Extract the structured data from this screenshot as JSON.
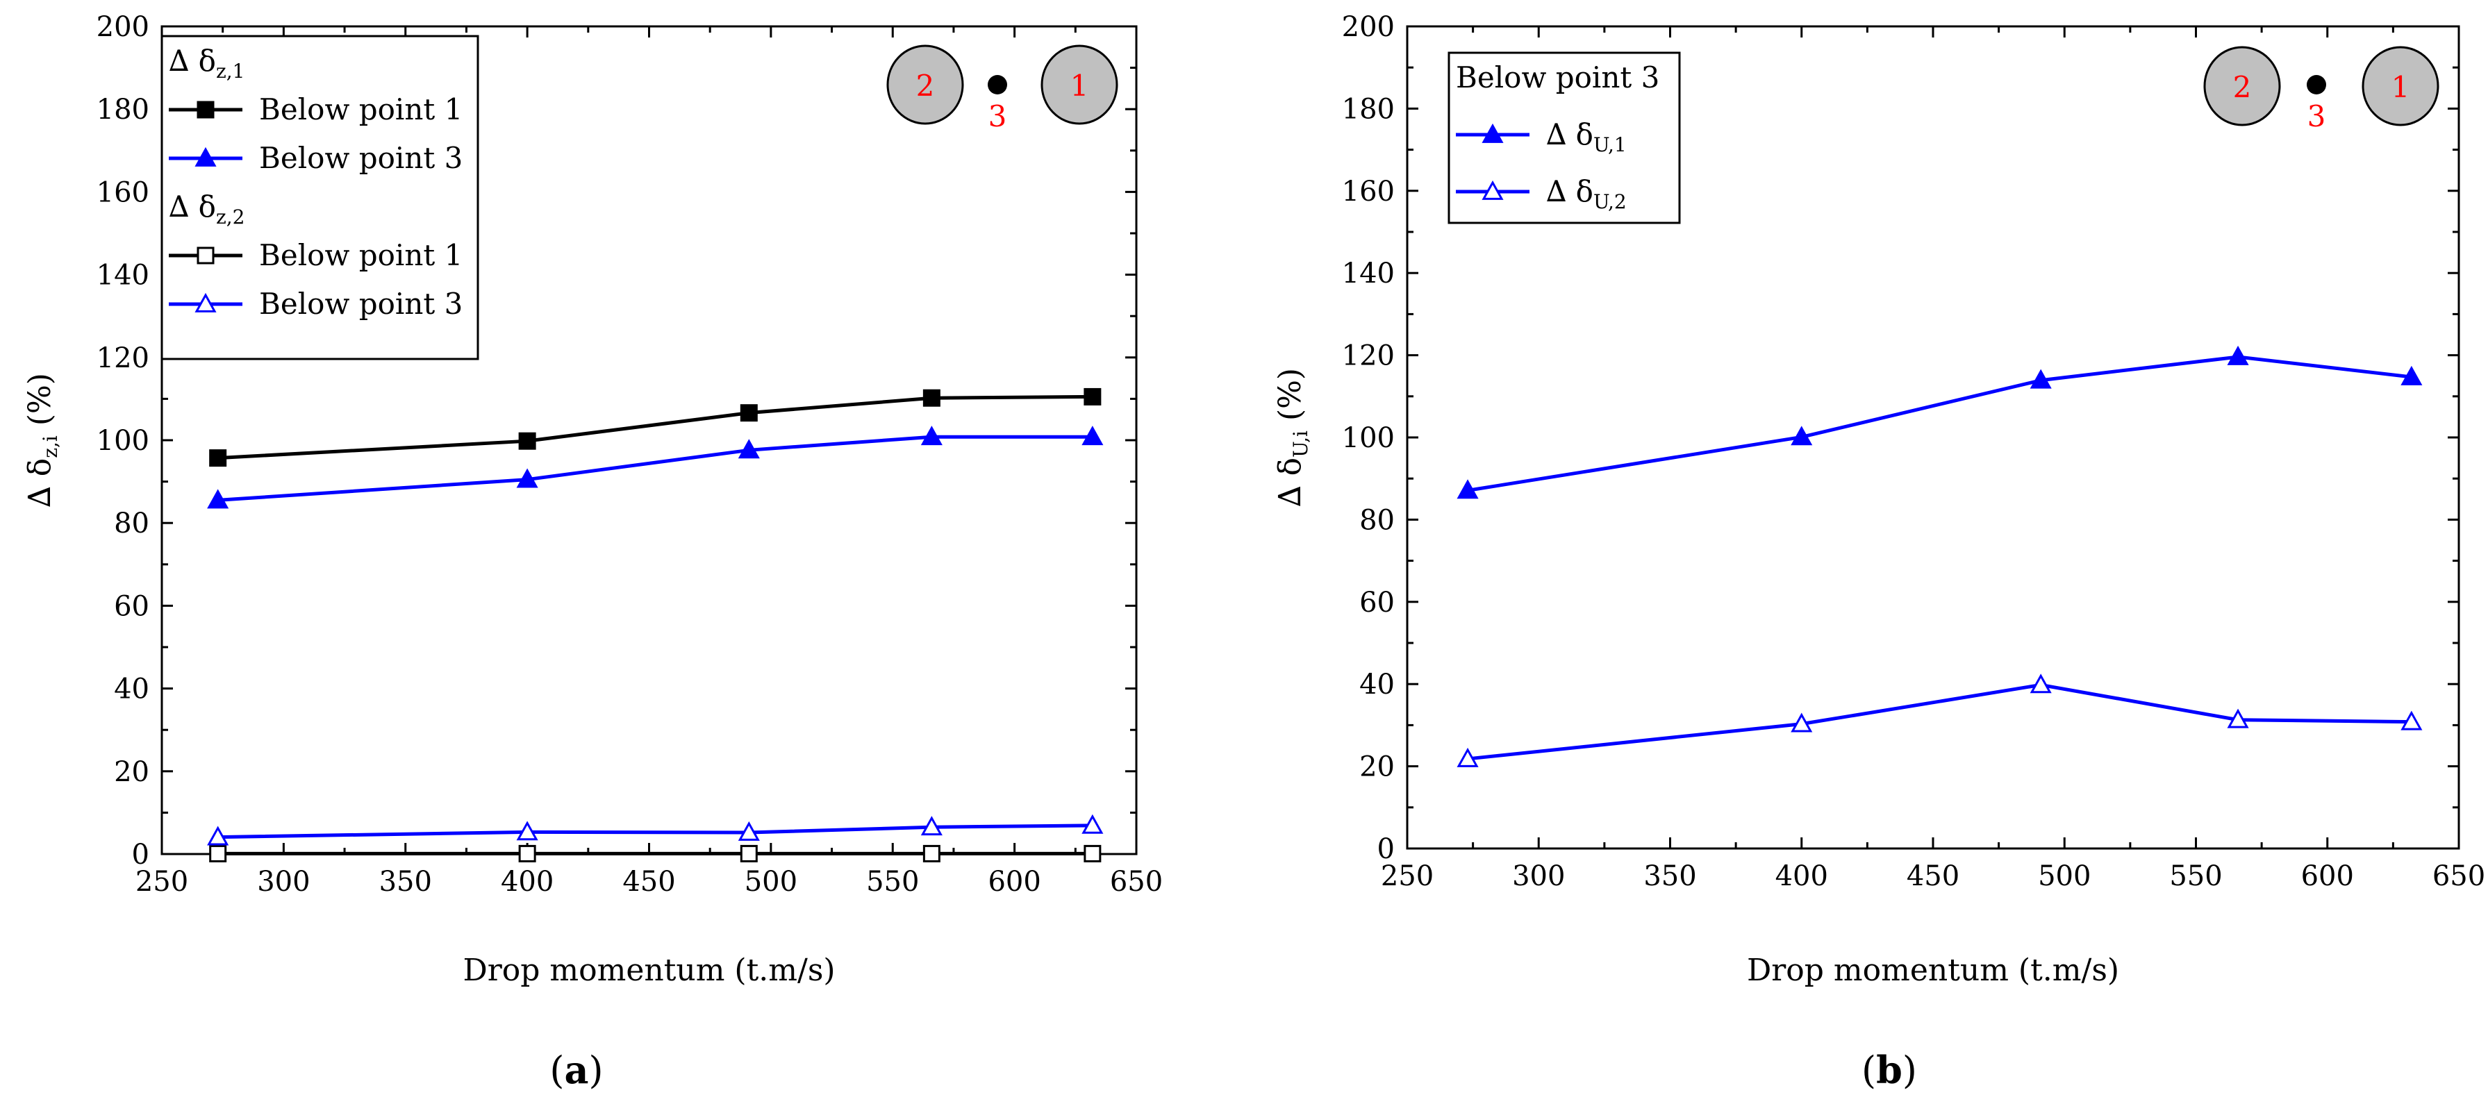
{
  "figure": {
    "panel_labels": [
      "a",
      "b"
    ]
  },
  "colors": {
    "black_series": "#000000",
    "blue_series": "#0000ff",
    "marker_label": "#ff0000",
    "pile_fill": "#c0c0c0"
  },
  "chart_data": [
    {
      "type": "line",
      "panel": "a",
      "xlabel": "Drop momentum (t.m/s)",
      "ylabel": {
        "prefix": "∆ δ",
        "sub": "z,i",
        "suffix": " (%)"
      },
      "xlim": [
        250,
        650
      ],
      "ylim": [
        0,
        200
      ],
      "xticks": [
        250,
        300,
        350,
        400,
        450,
        500,
        550,
        600,
        650
      ],
      "yticks": [
        0,
        20,
        40,
        60,
        80,
        100,
        120,
        140,
        160,
        180,
        200
      ],
      "grid": false,
      "legend_position": "top-left",
      "legend_groups": [
        {
          "title": {
            "prefix": "∆ δ",
            "sub": "z,1"
          },
          "series": [
            0,
            1
          ]
        },
        {
          "title": {
            "prefix": "∆ δ",
            "sub": "z,2"
          },
          "series": [
            2,
            3
          ]
        }
      ],
      "series": [
        {
          "name": "Below point 1",
          "color": "#000000",
          "marker": "square-filled",
          "x": [
            273,
            400,
            491,
            566,
            632
          ],
          "y": [
            95.7,
            99.8,
            106.6,
            110.2,
            110.5
          ]
        },
        {
          "name": "Below point 3",
          "color": "#0000ff",
          "marker": "triangle-filled",
          "x": [
            273,
            400,
            491,
            566,
            632
          ],
          "y": [
            85.5,
            90.5,
            97.6,
            100.8,
            100.8
          ]
        },
        {
          "name": "Below point 1",
          "color": "#000000",
          "marker": "square-open",
          "x": [
            273,
            400,
            491,
            566,
            632
          ],
          "y": [
            0.1,
            0.1,
            0.1,
            0.1,
            0.1
          ]
        },
        {
          "name": "Below point 3",
          "color": "#0000ff",
          "marker": "triangle-open",
          "x": [
            273,
            400,
            491,
            566,
            632
          ],
          "y": [
            4.1,
            5.3,
            5.2,
            6.5,
            6.9
          ]
        }
      ],
      "inset": {
        "piles": [
          "2",
          "1"
        ],
        "point": "3",
        "position": "top-right"
      }
    },
    {
      "type": "line",
      "panel": "b",
      "xlabel": "Drop momentum (t.m/s)",
      "ylabel": {
        "prefix": "∆ δ",
        "sub": "U,i",
        "suffix": " (%)"
      },
      "xlim": [
        250,
        650
      ],
      "ylim": [
        0,
        200
      ],
      "xticks": [
        250,
        300,
        350,
        400,
        450,
        500,
        550,
        600,
        650
      ],
      "yticks": [
        0,
        20,
        40,
        60,
        80,
        100,
        120,
        140,
        160,
        180,
        200
      ],
      "grid": false,
      "legend_position": "top-left",
      "legend_groups": [
        {
          "title": {
            "prefix": "Below point 3",
            "sub": ""
          },
          "series": [
            0,
            1
          ]
        }
      ],
      "series": [
        {
          "name": {
            "prefix": "∆ δ",
            "sub": "U,1"
          },
          "color": "#0000ff",
          "marker": "triangle-filled",
          "x": [
            273,
            400,
            491,
            566,
            632
          ],
          "y": [
            87.1,
            100.1,
            113.9,
            119.6,
            114.7
          ]
        },
        {
          "name": {
            "prefix": "∆ δ",
            "sub": "U,2"
          },
          "color": "#0000ff",
          "marker": "triangle-open",
          "x": [
            273,
            400,
            491,
            566,
            632
          ],
          "y": [
            21.8,
            30.3,
            39.8,
            31.3,
            30.8
          ]
        }
      ],
      "inset": {
        "piles": [
          "2",
          "1"
        ],
        "point": "3",
        "position": "top-right"
      }
    }
  ]
}
